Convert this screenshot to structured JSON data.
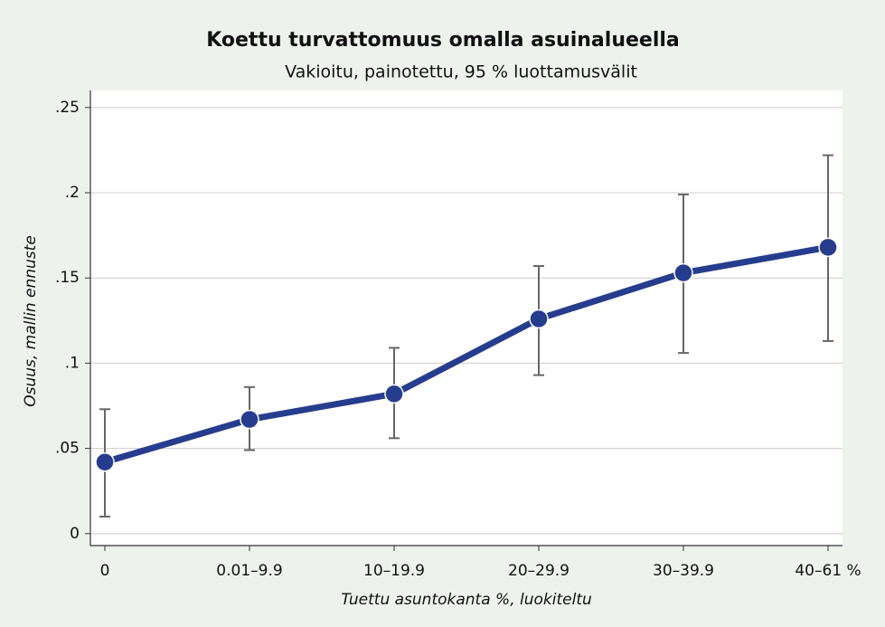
{
  "chart_data": {
    "type": "line",
    "title": "Koettu turvattomuus omalla asuinalueella",
    "subtitle": "Vakioitu, painotettu, 95 % luottamusvälit",
    "x_label": "Tuettu asuntokanta %, luokiteltu",
    "y_label": "Osuus, mallin ennuste",
    "categories": [
      "0",
      "0.01–9.9",
      "10–19.9",
      "20–29.9",
      "30–39.9",
      "40–61 %"
    ],
    "series": [
      {
        "color": "#263d8e",
        "values": [
          0.042,
          0.067,
          0.082,
          0.126,
          0.153,
          0.168
        ],
        "lower": [
          0.01,
          0.049,
          0.056,
          0.093,
          0.106,
          0.113
        ],
        "upper": [
          0.073,
          0.086,
          0.109,
          0.157,
          0.199,
          0.222
        ]
      }
    ],
    "error_color": "#666666",
    "ylim": [
      -0.007,
      0.26
    ],
    "yticks": [
      0,
      {
        "value": 0.05,
        "label": ".05"
      },
      {
        "value": 0.1,
        "label": ".1"
      },
      {
        "value": 0.15,
        "label": ".15"
      },
      {
        "value": 0.2,
        "label": ".2"
      },
      {
        "value": 0.25,
        "label": ".25"
      }
    ],
    "grid": true
  }
}
